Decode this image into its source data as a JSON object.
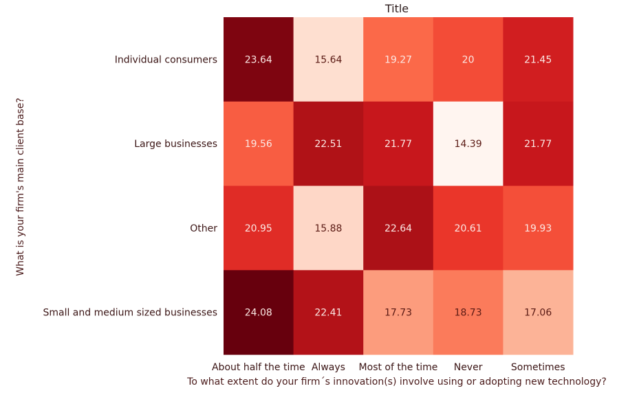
{
  "chart_data": {
    "type": "heatmap",
    "title": "Title",
    "xlabel": "To what extent do your firm´s innovation(s) involve using or adopting new technology?",
    "ylabel": "What is your firm's main client base?",
    "x_categories": [
      "About half the time",
      "Always",
      "Most of the time",
      "Never",
      "Sometimes"
    ],
    "y_categories": [
      "Individual consumers",
      "Large businesses",
      "Other",
      "Small and medium sized businesses"
    ],
    "values": [
      [
        23.64,
        15.64,
        19.27,
        20,
        21.45
      ],
      [
        19.56,
        22.51,
        21.77,
        14.39,
        21.77
      ],
      [
        20.95,
        15.88,
        22.64,
        20.61,
        19.93
      ],
      [
        24.08,
        22.41,
        17.73,
        18.73,
        17.06
      ]
    ],
    "value_labels": [
      [
        "23.64",
        "15.64",
        "19.27",
        "20",
        "21.45"
      ],
      [
        "19.56",
        "22.51",
        "21.77",
        "14.39",
        "21.77"
      ],
      [
        "20.95",
        "15.88",
        "22.64",
        "20.61",
        "19.93"
      ],
      [
        "24.08",
        "22.41",
        "17.73",
        "18.73",
        "17.06"
      ]
    ],
    "colormap": "Reds",
    "colorbar": false
  }
}
